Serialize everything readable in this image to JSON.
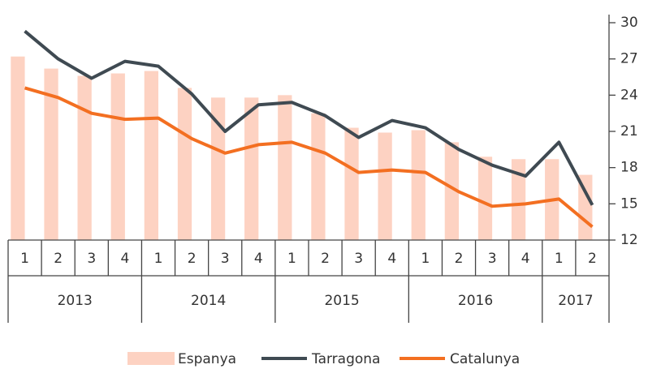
{
  "chart_data": {
    "type": "bar-line",
    "groups": [
      {
        "name": "2013",
        "categories": [
          "1",
          "2",
          "3",
          "4"
        ]
      },
      {
        "name": "2014",
        "categories": [
          "1",
          "2",
          "3",
          "4"
        ]
      },
      {
        "name": "2015",
        "categories": [
          "1",
          "2",
          "3",
          "4"
        ]
      },
      {
        "name": "2016",
        "categories": [
          "1",
          "2",
          "3",
          "4"
        ]
      },
      {
        "name": "2017",
        "categories": [
          "1",
          "2"
        ]
      }
    ],
    "series": [
      {
        "name": "Espanya",
        "type": "bar",
        "color": "#fdd2c2",
        "values": [
          27.2,
          26.2,
          25.6,
          25.8,
          26.0,
          24.6,
          23.8,
          23.8,
          24.0,
          22.5,
          21.3,
          20.9,
          21.1,
          20.1,
          18.9,
          18.7,
          18.7,
          17.4
        ]
      },
      {
        "name": "Tarragona",
        "type": "line",
        "color": "#3f4a52",
        "values": [
          29.3,
          27.0,
          25.4,
          26.8,
          26.4,
          24.1,
          21.0,
          23.2,
          23.4,
          22.3,
          20.5,
          21.9,
          21.3,
          19.5,
          18.2,
          17.3,
          20.1,
          14.9
        ]
      },
      {
        "name": "Catalunya",
        "type": "line",
        "color": "#f36f21",
        "values": [
          24.6,
          23.8,
          22.5,
          22.0,
          22.1,
          20.4,
          19.2,
          19.9,
          20.1,
          19.2,
          17.6,
          17.8,
          17.6,
          16.0,
          14.8,
          15.0,
          15.4,
          13.1
        ]
      }
    ],
    "ylim": [
      12,
      30
    ],
    "yticks": [
      12,
      15,
      18,
      21,
      24,
      27,
      30
    ],
    "y_axis_side": "right",
    "grid": false,
    "legend": "bottom"
  }
}
